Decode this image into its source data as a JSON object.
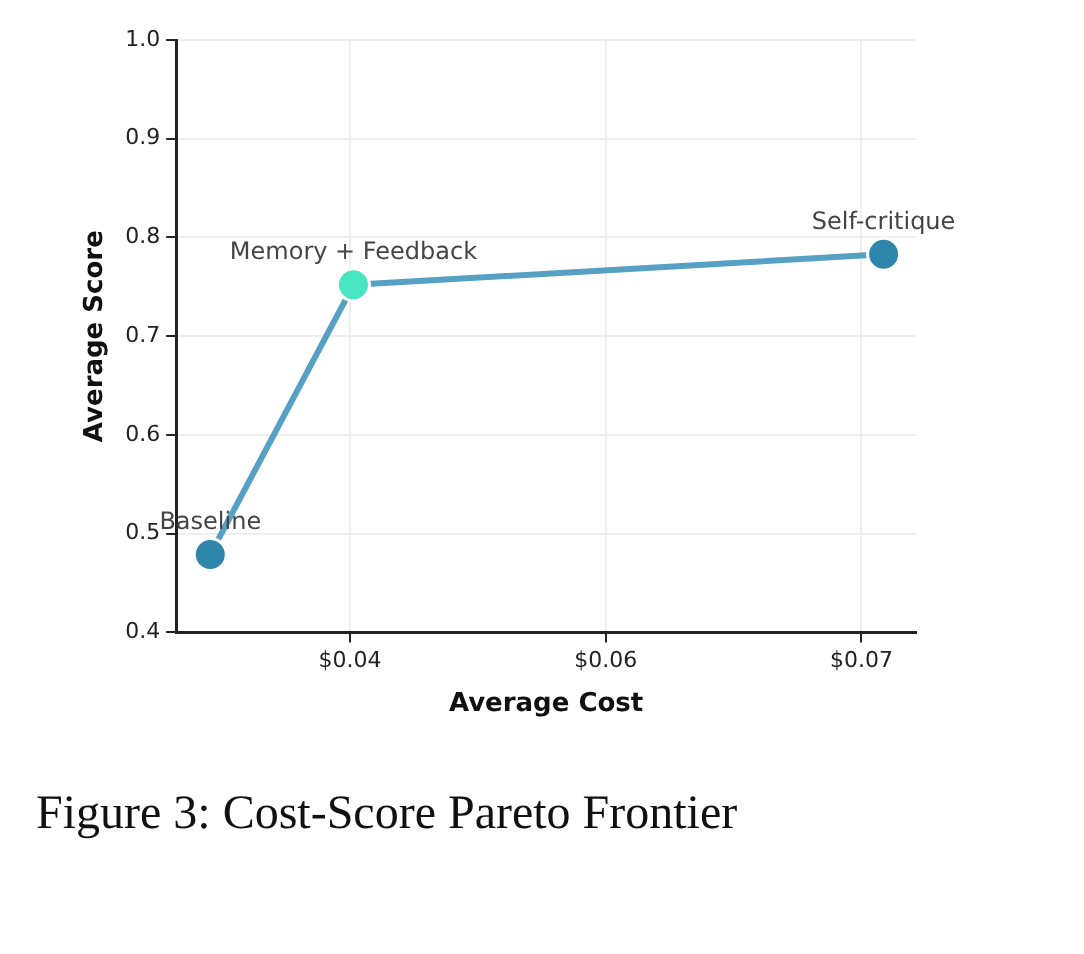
{
  "chart_data": {
    "type": "line",
    "title": "Figure 3: Cost-Score Pareto Frontier",
    "xlabel": "Average Cost",
    "ylabel": "Average Score",
    "x": [
      0.0318,
      0.0402,
      0.0713
    ],
    "series": [
      {
        "color": "#56a0c4",
        "colors": [
          "#2e86ab",
          "#48e5c2",
          "#2e86ab"
        ],
        "values": [
          0.479,
          0.752,
          0.783
        ]
      }
    ],
    "xlim": [
      0.0298,
      0.0732
    ],
    "xticks": [
      {
        "value": 0.04,
        "label": "$0.04"
      },
      {
        "value": 0.055,
        "label": "$0.06"
      },
      {
        "value": 0.07,
        "label": "$0.07"
      }
    ],
    "ylim": [
      0.4,
      1.0
    ],
    "yticks": [
      {
        "value": 0.4,
        "label": "0.4"
      },
      {
        "value": 0.5,
        "label": "0.5"
      },
      {
        "value": 0.6,
        "label": "0.6"
      },
      {
        "value": 0.7,
        "label": "0.7"
      },
      {
        "value": 0.8,
        "label": "0.8"
      },
      {
        "value": 0.9,
        "label": "0.9"
      },
      {
        "value": 1.0,
        "label": "1.0"
      }
    ],
    "annotations": [
      {
        "text": "Baseline",
        "x": 0.0318,
        "y": 0.479
      },
      {
        "text": "Memory + Feedback",
        "x": 0.0402,
        "y": 0.752
      },
      {
        "text": "Self-critique",
        "x": 0.0713,
        "y": 0.783
      }
    ],
    "grid": true,
    "marker": "circle",
    "line_style": "solid",
    "legend": false
  }
}
